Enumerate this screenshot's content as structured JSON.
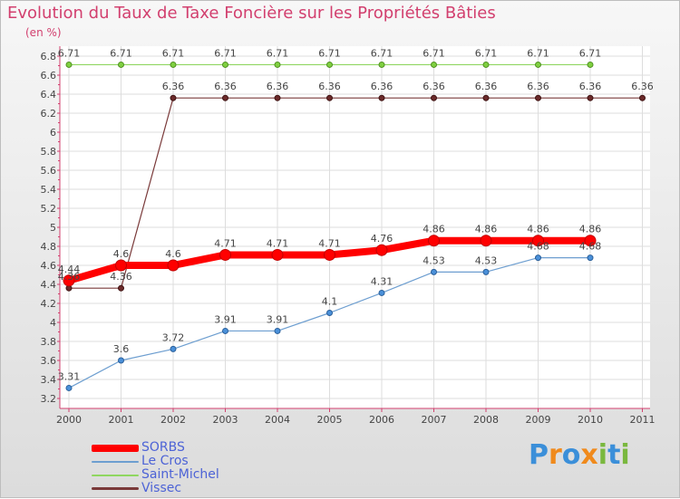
{
  "chart_data": {
    "type": "line",
    "title": "Evolution du Taux de Taxe Foncière sur les Propriétés Bâties",
    "ylabel": "(en %)",
    "x": [
      "2000",
      "2001",
      "2002",
      "2003",
      "2004",
      "2005",
      "2006",
      "2007",
      "2008",
      "2009",
      "2010",
      "2011"
    ],
    "ylim": [
      3.2,
      6.8
    ],
    "yticks": [
      "3.2",
      "3.4",
      "3.6",
      "3.8",
      "4",
      "4.2",
      "4.4",
      "4.6",
      "4.8",
      "5",
      "5.2",
      "5.4",
      "5.6",
      "5.8",
      "6",
      "6.2",
      "6.4",
      "6.6",
      "6.8"
    ],
    "series": [
      {
        "name": "SORBS",
        "color": "#ff0000",
        "values": [
          4.44,
          4.6,
          4.6,
          4.71,
          4.71,
          4.71,
          4.76,
          4.86,
          4.86,
          4.86,
          4.86,
          null
        ],
        "labels": [
          "4.44",
          "4.6",
          "4.6",
          "4.71",
          "4.71",
          "4.71",
          "4.76",
          "4.86",
          "4.86",
          "4.86",
          "4.86",
          ""
        ]
      },
      {
        "name": "Le Cros",
        "color": "#6d9ed0",
        "values": [
          3.31,
          3.6,
          3.72,
          3.91,
          3.91,
          4.1,
          4.31,
          4.53,
          4.53,
          4.68,
          4.68,
          null
        ],
        "labels": [
          "3.31",
          "3.6",
          "3.72",
          "3.91",
          "3.91",
          "4.1",
          "4.31",
          "4.53",
          "4.53",
          "4.68",
          "4.68",
          ""
        ]
      },
      {
        "name": "Saint-Michel",
        "color": "#8fd660",
        "values": [
          6.71,
          6.71,
          6.71,
          6.71,
          6.71,
          6.71,
          6.71,
          6.71,
          6.71,
          6.71,
          6.71,
          null
        ],
        "labels": [
          "6.71",
          "6.71",
          "6.71",
          "6.71",
          "6.71",
          "6.71",
          "6.71",
          "6.71",
          "6.71",
          "6.71",
          "6.71",
          ""
        ]
      },
      {
        "name": "Vissec",
        "color": "#7a3a3a",
        "values": [
          4.36,
          4.36,
          6.36,
          6.36,
          6.36,
          6.36,
          6.36,
          6.36,
          6.36,
          6.36,
          6.36,
          6.36
        ],
        "labels": [
          "4.36",
          "4.36",
          "6.36",
          "6.36",
          "6.36",
          "6.36",
          "6.36",
          "6.36",
          "6.36",
          "6.36",
          "6.36",
          "6.36"
        ]
      }
    ],
    "legend_position": "bottom-left",
    "grid": true
  },
  "brand": {
    "letters": [
      "P",
      "r",
      "o",
      "x",
      "i",
      "t",
      "i"
    ],
    "colors": [
      "#3b8fd9",
      "#f08a1c",
      "#3b8fd9",
      "#f08a1c",
      "#7ab83e",
      "#3b8fd9",
      "#7ab83e"
    ]
  }
}
